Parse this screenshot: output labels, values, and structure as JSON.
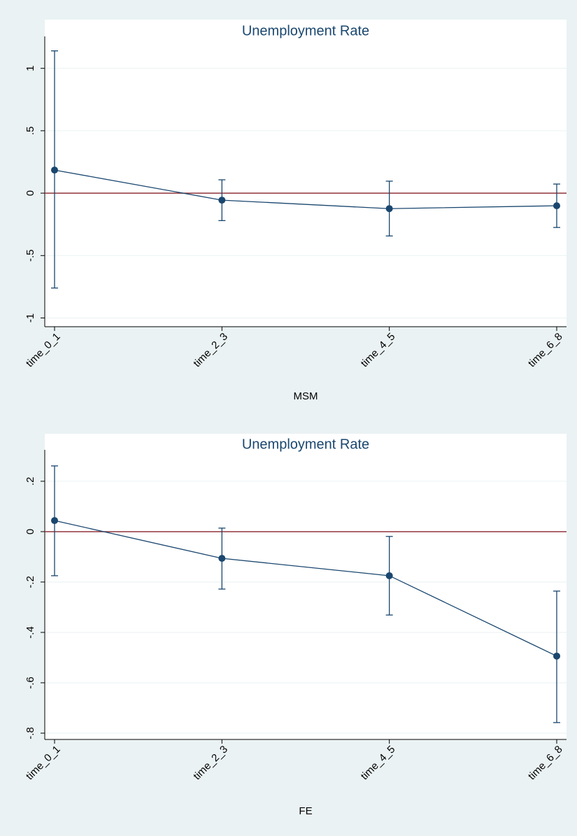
{
  "chart_data": [
    {
      "type": "line",
      "title": "Unemployment Rate",
      "x_label": "MSM",
      "categories": [
        "time_0_1",
        "time_2_3",
        "time_4_5",
        "time_6_8"
      ],
      "values": [
        0.185,
        -0.056,
        -0.124,
        -0.101
      ],
      "lower": [
        -0.76,
        -0.22,
        -0.343,
        -0.275
      ],
      "upper": [
        1.14,
        0.107,
        0.096,
        0.073
      ],
      "color": "#1a476f",
      "refline": 0,
      "refline_color": "#90353b",
      "ylim": [
        -1.07,
        1.2
      ],
      "yticks": [
        {
          "value": -1,
          "label": "-1"
        },
        {
          "value": -0.5,
          "label": "-.5"
        },
        0,
        {
          "value": 0.5,
          "label": ".5"
        },
        1
      ],
      "grid": true
    },
    {
      "type": "line",
      "title": "Unemployment Rate",
      "x_label": "FE",
      "categories": [
        "time_0_1",
        "time_2_3",
        "time_4_5",
        "time_6_8"
      ],
      "values": [
        0.044,
        -0.106,
        -0.175,
        -0.494
      ],
      "lower": [
        -0.175,
        -0.228,
        -0.331,
        -0.758
      ],
      "upper": [
        0.261,
        0.014,
        -0.019,
        -0.236
      ],
      "color": "#1a476f",
      "refline": 0,
      "refline_color": "#90353b",
      "ylim": [
        -0.825,
        0.297
      ],
      "yticks": [
        {
          "value": -0.8,
          "label": "-.8"
        },
        {
          "value": -0.6,
          "label": "-.6"
        },
        {
          "value": -0.4,
          "label": "-.4"
        },
        {
          "value": -0.2,
          "label": "-.2"
        },
        0,
        {
          "value": 0.2,
          "label": ".2"
        }
      ],
      "grid": true
    }
  ]
}
